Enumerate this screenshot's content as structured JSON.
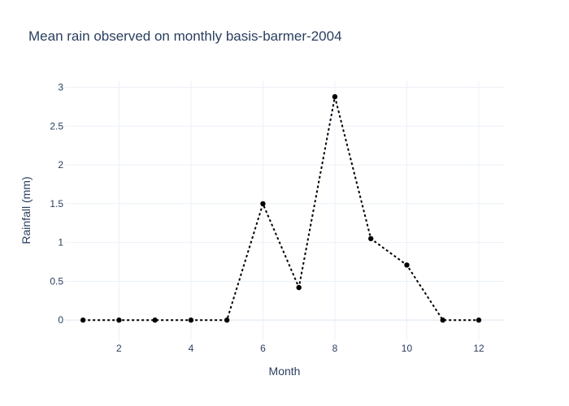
{
  "chart_data": {
    "type": "line",
    "title": "Mean rain observed on monthly basis-barmer-2004",
    "xlabel": "Month",
    "ylabel": "Rainfall (mm)",
    "x": [
      1,
      2,
      3,
      4,
      5,
      6,
      7,
      8,
      9,
      10,
      11,
      12
    ],
    "series": [
      {
        "values": [
          0,
          0,
          0,
          0,
          0,
          1.5,
          0.42,
          2.88,
          1.05,
          0.71,
          0,
          0
        ]
      }
    ],
    "xlim": [
      0.5,
      12.7
    ],
    "ylim": [
      -0.27,
      3.08
    ],
    "xticks": [
      2,
      4,
      6,
      8,
      10,
      12
    ],
    "yticks": [
      0,
      0.5,
      1,
      1.5,
      2,
      2.5,
      3
    ],
    "xtick_labels": [
      "2",
      "4",
      "6",
      "8",
      "10",
      "12"
    ],
    "ytick_labels": [
      "0",
      "0.5",
      "1",
      "1.5",
      "2",
      "2.5",
      "3"
    ],
    "grid": true,
    "line_style": "dotted",
    "colors": {
      "series": "#000000",
      "grid": "#ebf0f8",
      "text": "#2a3f5f",
      "background": "#ffffff"
    }
  }
}
